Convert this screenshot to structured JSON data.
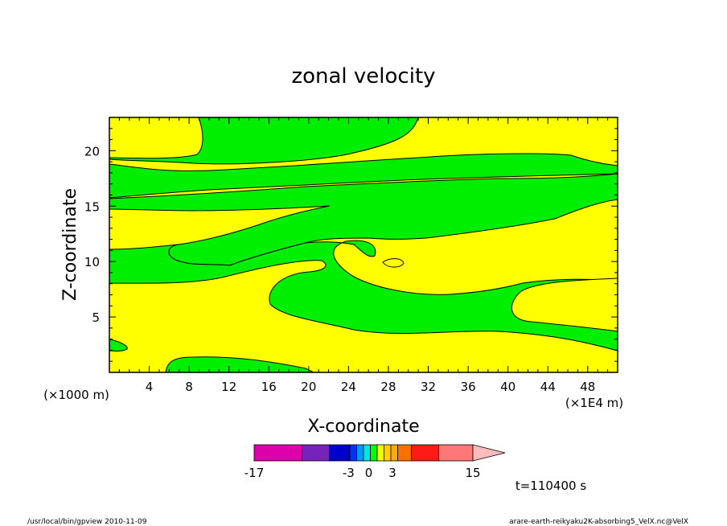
{
  "chart_data": {
    "type": "heatmap",
    "title": "zonal velocity",
    "xlabel": "X-coordinate",
    "ylabel": "Z-coordinate",
    "x_scale_label": "(×1E4 m)",
    "z_scale_label": "(×1000 m)",
    "xlim": [
      0,
      51
    ],
    "ylim": [
      0,
      23
    ],
    "x_ticks": [
      "4",
      "8",
      "12",
      "16",
      "20",
      "24",
      "28",
      "32",
      "36",
      "40",
      "44",
      "48"
    ],
    "y_ticks": [
      "5",
      "10",
      "15",
      "20"
    ],
    "colorbar": {
      "labels": [
        "-17",
        "-3",
        "0",
        "3",
        "15"
      ],
      "colors": [
        "#dd00aa",
        "#7722bb",
        "#0000cc",
        "#0033ee",
        "#0099ff",
        "#00e5e5",
        "#00ff00",
        "#f2ff00",
        "#ffd000",
        "#ffaa00",
        "#ff6e00",
        "#ff1a1a",
        "#ff7777",
        "#ffbbbb"
      ]
    },
    "region_colors": {
      "positive": "#ffff00",
      "negative": "#00ee00"
    },
    "time_label": "t=110400 s"
  },
  "footer": {
    "left": "/usr/local/bin/gpview  2010-11-09",
    "right": "arare-earth-reikyaku2K-absorbing5_VelX.nc@VelX"
  }
}
